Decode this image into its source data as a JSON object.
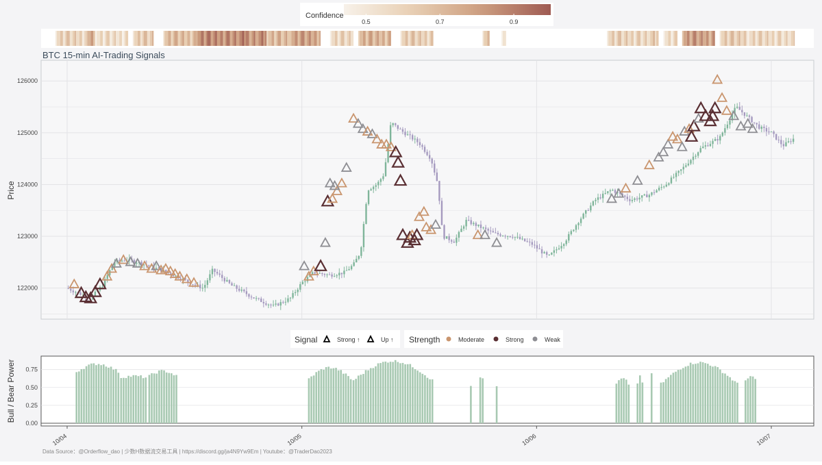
{
  "chart_data": [
    {
      "type": "candlestick",
      "title": "BTC 15-min AI-Trading Signals",
      "ylabel": "Price",
      "ylim": [
        121400,
        126400
      ],
      "yticks": [
        122000,
        123000,
        124000,
        125000,
        126000
      ],
      "x_range": [
        -0.05,
        3.12
      ],
      "grid": true,
      "price_path": [
        [
          0.0,
          122000
        ],
        [
          0.05,
          121900
        ],
        [
          0.1,
          121800
        ],
        [
          0.15,
          122050
        ],
        [
          0.2,
          122500
        ],
        [
          0.25,
          122550
        ],
        [
          0.3,
          122500
        ],
        [
          0.4,
          122350
        ],
        [
          0.48,
          122200
        ],
        [
          0.55,
          122050
        ],
        [
          0.58,
          122000
        ],
        [
          0.62,
          122350
        ],
        [
          0.7,
          122050
        ],
        [
          0.8,
          121800
        ],
        [
          0.88,
          121650
        ],
        [
          0.95,
          121800
        ],
        [
          1.0,
          122100
        ],
        [
          1.05,
          122300
        ],
        [
          1.12,
          122250
        ],
        [
          1.18,
          122300
        ],
        [
          1.22,
          122450
        ],
        [
          1.25,
          122700
        ],
        [
          1.28,
          123900
        ],
        [
          1.32,
          124000
        ],
        [
          1.35,
          124200
        ],
        [
          1.38,
          125200
        ],
        [
          1.42,
          125050
        ],
        [
          1.5,
          124800
        ],
        [
          1.55,
          124500
        ],
        [
          1.58,
          124000
        ],
        [
          1.6,
          123000
        ],
        [
          1.65,
          122900
        ],
        [
          1.7,
          123300
        ],
        [
          1.75,
          123200
        ],
        [
          1.82,
          123050
        ],
        [
          1.9,
          123000
        ],
        [
          1.98,
          122850
        ],
        [
          2.05,
          122600
        ],
        [
          2.12,
          122900
        ],
        [
          2.18,
          123300
        ],
        [
          2.25,
          123700
        ],
        [
          2.32,
          123900
        ],
        [
          2.4,
          123700
        ],
        [
          2.48,
          123800
        ],
        [
          2.55,
          124000
        ],
        [
          2.62,
          124300
        ],
        [
          2.7,
          124700
        ],
        [
          2.78,
          124900
        ],
        [
          2.85,
          125500
        ],
        [
          2.9,
          125300
        ],
        [
          2.95,
          125100
        ],
        [
          3.0,
          125000
        ],
        [
          3.05,
          124750
        ],
        [
          3.1,
          124900
        ]
      ],
      "signals": [
        {
          "x": 0.03,
          "y": 122050,
          "strength": "Moderate"
        },
        {
          "x": 0.06,
          "y": 121880,
          "strength": "Strong"
        },
        {
          "x": 0.08,
          "y": 121800,
          "strength": "Strong"
        },
        {
          "x": 0.1,
          "y": 121780,
          "strength": "Strong"
        },
        {
          "x": 0.12,
          "y": 121900,
          "strength": "Strong"
        },
        {
          "x": 0.14,
          "y": 122050,
          "strength": "Strong"
        },
        {
          "x": 0.17,
          "y": 122200,
          "strength": "Moderate"
        },
        {
          "x": 0.19,
          "y": 122350,
          "strength": "Moderate"
        },
        {
          "x": 0.21,
          "y": 122450,
          "strength": "Weak"
        },
        {
          "x": 0.24,
          "y": 122520,
          "strength": "Moderate"
        },
        {
          "x": 0.27,
          "y": 122480,
          "strength": "Weak"
        },
        {
          "x": 0.3,
          "y": 122450,
          "strength": "Weak"
        },
        {
          "x": 0.33,
          "y": 122400,
          "strength": "Moderate"
        },
        {
          "x": 0.36,
          "y": 122350,
          "strength": "Moderate"
        },
        {
          "x": 0.38,
          "y": 122400,
          "strength": "Weak"
        },
        {
          "x": 0.4,
          "y": 122320,
          "strength": "Moderate"
        },
        {
          "x": 0.42,
          "y": 122350,
          "strength": "Moderate"
        },
        {
          "x": 0.44,
          "y": 122300,
          "strength": "Moderate"
        },
        {
          "x": 0.46,
          "y": 122250,
          "strength": "Moderate"
        },
        {
          "x": 0.48,
          "y": 122200,
          "strength": "Moderate"
        },
        {
          "x": 0.51,
          "y": 122150,
          "strength": "Moderate"
        },
        {
          "x": 0.54,
          "y": 122080,
          "strength": "Moderate"
        },
        {
          "x": 1.01,
          "y": 122400,
          "strength": "Weak"
        },
        {
          "x": 1.03,
          "y": 122200,
          "strength": "Moderate"
        },
        {
          "x": 1.05,
          "y": 122300,
          "strength": "Moderate"
        },
        {
          "x": 1.08,
          "y": 122400,
          "strength": "Strong"
        },
        {
          "x": 1.1,
          "y": 122850,
          "strength": "Weak"
        },
        {
          "x": 1.11,
          "y": 123650,
          "strength": "Strong"
        },
        {
          "x": 1.13,
          "y": 123700,
          "strength": "Moderate"
        },
        {
          "x": 1.15,
          "y": 123850,
          "strength": "Moderate"
        },
        {
          "x": 1.17,
          "y": 124000,
          "strength": "Moderate"
        },
        {
          "x": 1.12,
          "y": 124000,
          "strength": "Weak"
        },
        {
          "x": 1.14,
          "y": 123950,
          "strength": "Weak"
        },
        {
          "x": 1.19,
          "y": 124300,
          "strength": "Weak"
        },
        {
          "x": 1.22,
          "y": 125250,
          "strength": "Moderate"
        },
        {
          "x": 1.24,
          "y": 125150,
          "strength": "Weak"
        },
        {
          "x": 1.26,
          "y": 125050,
          "strength": "Weak"
        },
        {
          "x": 1.28,
          "y": 125000,
          "strength": "Moderate"
        },
        {
          "x": 1.3,
          "y": 124950,
          "strength": "Weak"
        },
        {
          "x": 1.32,
          "y": 124850,
          "strength": "Moderate"
        },
        {
          "x": 1.34,
          "y": 124750,
          "strength": "Moderate"
        },
        {
          "x": 1.36,
          "y": 124750,
          "strength": "Moderate"
        },
        {
          "x": 1.38,
          "y": 124700,
          "strength": "Moderate"
        },
        {
          "x": 1.4,
          "y": 124600,
          "strength": "Strong"
        },
        {
          "x": 1.41,
          "y": 124400,
          "strength": "Strong"
        },
        {
          "x": 1.42,
          "y": 124050,
          "strength": "Strong"
        },
        {
          "x": 1.43,
          "y": 123000,
          "strength": "Strong"
        },
        {
          "x": 1.45,
          "y": 122850,
          "strength": "Strong"
        },
        {
          "x": 1.46,
          "y": 122950,
          "strength": "Strong"
        },
        {
          "x": 1.47,
          "y": 123000,
          "strength": "Moderate"
        },
        {
          "x": 1.48,
          "y": 122900,
          "strength": "Strong"
        },
        {
          "x": 1.49,
          "y": 123000,
          "strength": "Strong"
        },
        {
          "x": 1.5,
          "y": 123350,
          "strength": "Moderate"
        },
        {
          "x": 1.52,
          "y": 123450,
          "strength": "Moderate"
        },
        {
          "x": 1.53,
          "y": 123150,
          "strength": "Moderate"
        },
        {
          "x": 1.55,
          "y": 123100,
          "strength": "Moderate"
        },
        {
          "x": 1.57,
          "y": 123200,
          "strength": "Weak"
        },
        {
          "x": 1.75,
          "y": 123000,
          "strength": "Moderate"
        },
        {
          "x": 1.78,
          "y": 123000,
          "strength": "Weak"
        },
        {
          "x": 1.83,
          "y": 122850,
          "strength": "Weak"
        },
        {
          "x": 2.32,
          "y": 123700,
          "strength": "Weak"
        },
        {
          "x": 2.35,
          "y": 123800,
          "strength": "Weak"
        },
        {
          "x": 2.38,
          "y": 123900,
          "strength": "Moderate"
        },
        {
          "x": 2.43,
          "y": 124050,
          "strength": "Weak"
        },
        {
          "x": 2.48,
          "y": 124350,
          "strength": "Moderate"
        },
        {
          "x": 2.52,
          "y": 124500,
          "strength": "Weak"
        },
        {
          "x": 2.54,
          "y": 124600,
          "strength": "Weak"
        },
        {
          "x": 2.56,
          "y": 124750,
          "strength": "Weak"
        },
        {
          "x": 2.58,
          "y": 124900,
          "strength": "Moderate"
        },
        {
          "x": 2.6,
          "y": 124850,
          "strength": "Moderate"
        },
        {
          "x": 2.62,
          "y": 124700,
          "strength": "Weak"
        },
        {
          "x": 2.63,
          "y": 125000,
          "strength": "Weak"
        },
        {
          "x": 2.65,
          "y": 125050,
          "strength": "Moderate"
        },
        {
          "x": 2.66,
          "y": 124900,
          "strength": "Strong"
        },
        {
          "x": 2.67,
          "y": 125100,
          "strength": "Strong"
        },
        {
          "x": 2.69,
          "y": 125250,
          "strength": "Weak"
        },
        {
          "x": 2.7,
          "y": 125450,
          "strength": "Strong"
        },
        {
          "x": 2.72,
          "y": 125300,
          "strength": "Strong"
        },
        {
          "x": 2.74,
          "y": 125200,
          "strength": "Strong"
        },
        {
          "x": 2.75,
          "y": 125300,
          "strength": "Strong"
        },
        {
          "x": 2.76,
          "y": 125450,
          "strength": "Strong"
        },
        {
          "x": 2.77,
          "y": 126000,
          "strength": "Moderate"
        },
        {
          "x": 2.79,
          "y": 125650,
          "strength": "Moderate"
        },
        {
          "x": 2.81,
          "y": 125400,
          "strength": "Moderate"
        },
        {
          "x": 2.84,
          "y": 125300,
          "strength": "Weak"
        },
        {
          "x": 2.87,
          "y": 125100,
          "strength": "Weak"
        },
        {
          "x": 2.9,
          "y": 125150,
          "strength": "Weak"
        },
        {
          "x": 2.92,
          "y": 125050,
          "strength": "Weak"
        }
      ]
    },
    {
      "type": "bar",
      "ylabel": "Bull / Bear Power",
      "ylim": [
        0,
        0.9
      ],
      "yticks": [
        0.0,
        0.25,
        0.5,
        0.75
      ],
      "x_ticks": [
        {
          "x": 0.0,
          "label": "10/04"
        },
        {
          "x": 1.0,
          "label": "10/05"
        },
        {
          "x": 2.0,
          "label": "10/06"
        },
        {
          "x": 3.0,
          "label": "10/07"
        }
      ],
      "segments": [
        {
          "start": 0.04,
          "end": 0.23,
          "peak": 0.83,
          "base": 0.72
        },
        {
          "start": 0.23,
          "end": 0.35,
          "peak": 0.66,
          "base": 0.64
        },
        {
          "start": 0.35,
          "end": 0.48,
          "peak": 0.73,
          "base": 0.66
        },
        {
          "start": 1.03,
          "end": 1.22,
          "peak": 0.78,
          "base": 0.62
        },
        {
          "start": 1.22,
          "end": 1.57,
          "peak": 0.87,
          "base": 0.6
        },
        {
          "start": 1.72,
          "end": 1.73,
          "peak": 0.52,
          "base": 0.52
        },
        {
          "start": 1.76,
          "end": 1.78,
          "peak": 0.7,
          "base": 0.64
        },
        {
          "start": 1.83,
          "end": 1.84,
          "peak": 0.5,
          "base": 0.5
        },
        {
          "start": 2.34,
          "end": 2.4,
          "peak": 0.62,
          "base": 0.55
        },
        {
          "start": 2.43,
          "end": 2.46,
          "peak": 0.68,
          "base": 0.55
        },
        {
          "start": 2.49,
          "end": 2.5,
          "peak": 0.7,
          "base": 0.7
        },
        {
          "start": 2.53,
          "end": 2.87,
          "peak": 0.85,
          "base": 0.55
        },
        {
          "start": 2.89,
          "end": 2.94,
          "peak": 0.66,
          "base": 0.6
        }
      ]
    }
  ],
  "colorbar": {
    "label": "Confidence",
    "ticks": [
      {
        "v": 0.5,
        "label": "0.5"
      },
      {
        "v": 0.7,
        "label": "0.7"
      },
      {
        "v": 0.9,
        "label": "0.9"
      }
    ],
    "range": [
      0.44,
      1.0
    ],
    "colors": [
      "#f7f1e9",
      "#e8cfb3",
      "#cc9d7f",
      "#9e5a52"
    ]
  },
  "confidence_strip": [
    {
      "start": -0.05,
      "end": 0.08,
      "level": 0.6
    },
    {
      "start": 0.08,
      "end": 0.12,
      "level": 0.75
    },
    {
      "start": 0.12,
      "end": 0.26,
      "level": 0.55
    },
    {
      "start": 0.28,
      "end": 0.37,
      "level": 0.62
    },
    {
      "start": 0.41,
      "end": 0.55,
      "level": 0.68
    },
    {
      "start": 0.55,
      "end": 0.85,
      "level": 0.85
    },
    {
      "start": 0.85,
      "end": 0.95,
      "level": 0.7
    },
    {
      "start": 0.95,
      "end": 1.08,
      "level": 0.78
    },
    {
      "start": 1.12,
      "end": 1.22,
      "level": 0.58
    },
    {
      "start": 1.24,
      "end": 1.38,
      "level": 0.72
    },
    {
      "start": 1.42,
      "end": 1.56,
      "level": 0.62
    },
    {
      "start": 1.77,
      "end": 1.8,
      "level": 0.65
    },
    {
      "start": 1.85,
      "end": 1.87,
      "level": 0.55
    },
    {
      "start": 2.3,
      "end": 2.52,
      "level": 0.6
    },
    {
      "start": 2.54,
      "end": 2.6,
      "level": 0.55
    },
    {
      "start": 2.62,
      "end": 2.76,
      "level": 0.8
    },
    {
      "start": 2.78,
      "end": 2.9,
      "level": 0.62
    },
    {
      "start": 2.9,
      "end": 3.1,
      "level": 0.58
    }
  ],
  "legend": {
    "signal_title": "Signal",
    "signal_items": [
      "Strong ↑",
      "Up ↑"
    ],
    "strength_title": "Strength",
    "strength_items": [
      {
        "label": "Moderate",
        "color": "#c9956e"
      },
      {
        "label": "Strong",
        "color": "#5a2f33"
      },
      {
        "label": "Weak",
        "color": "#8e8e93"
      }
    ]
  },
  "footer": "Data Source：@Orderflow_dao | 少数H数据流交易工具 | https://discord.gg/ja4N9Yw9Em | Youtube：@TraderDao2023",
  "colors": {
    "up_candle": "#7fb59a",
    "down_candle": "#a59abf",
    "bar": "#a8c9b2",
    "panel_bg": "#f7f7f8",
    "grid": "#e3e3e6"
  }
}
